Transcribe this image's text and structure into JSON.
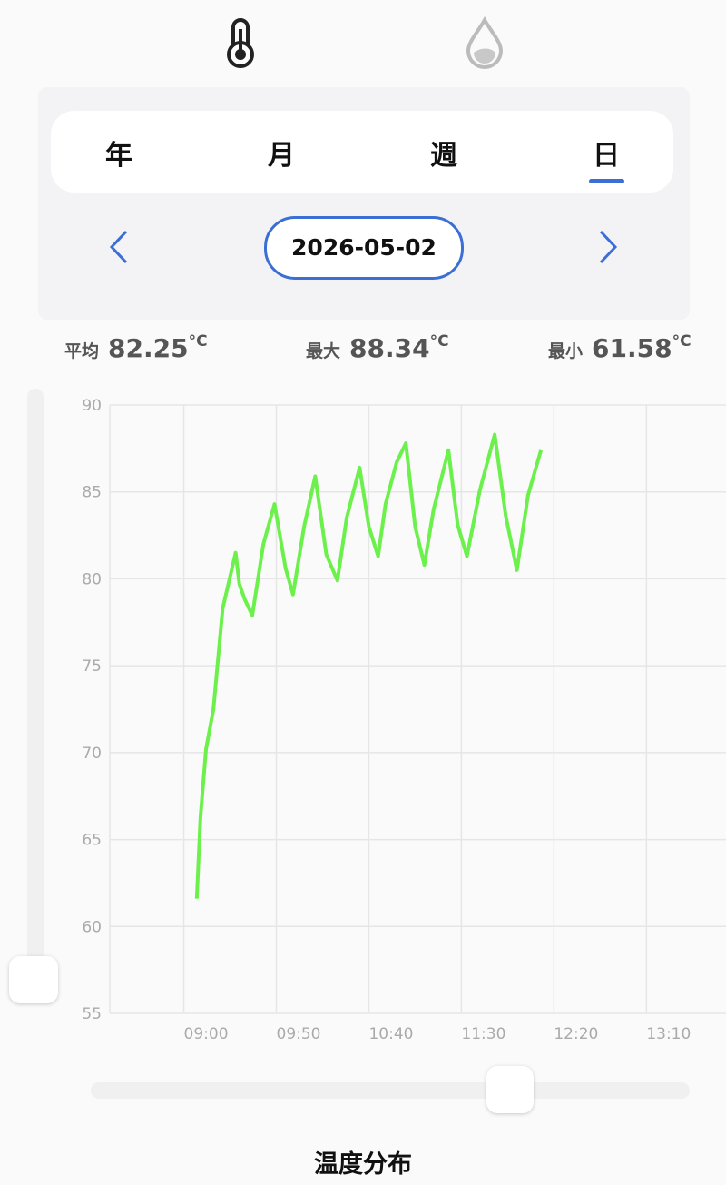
{
  "tabs": [
    "年",
    "月",
    "週",
    "日"
  ],
  "active_tab": "日",
  "date": "2026-05-02",
  "stats": [
    {
      "label": "平均",
      "value": "82.25",
      "unit": "°C"
    },
    {
      "label": "最大",
      "value": "88.34",
      "unit": "°C"
    },
    {
      "label": "最小",
      "value": "61.58",
      "unit": "°C"
    }
  ],
  "chart_data": {
    "type": "line",
    "color": "#6cf04c",
    "grid": true,
    "x": [
      547,
      549,
      552,
      556,
      561,
      568,
      570,
      573,
      577,
      583,
      589,
      595,
      599,
      605,
      611,
      617,
      623,
      628,
      635,
      640,
      645,
      649,
      655,
      660,
      665,
      670,
      675,
      683,
      688,
      693,
      700,
      708,
      714,
      720,
      726,
      733
    ],
    "values": [
      61.6,
      66.3,
      70.2,
      72.5,
      78.3,
      81.5,
      79.7,
      78.8,
      77.9,
      82.0,
      84.3,
      80.6,
      79.1,
      83.0,
      85.9,
      81.4,
      79.9,
      83.5,
      86.4,
      83.0,
      81.3,
      84.3,
      86.7,
      87.8,
      83.0,
      80.8,
      84.0,
      87.4,
      83.1,
      81.3,
      85.1,
      88.3,
      83.6,
      80.5,
      84.8,
      87.4
    ],
    "xlim": [
      500,
      833
    ],
    "xticks": [
      {
        "value": 540,
        "label": "09:00"
      },
      {
        "value": 590,
        "label": "09:50"
      },
      {
        "value": 640,
        "label": "10:40"
      },
      {
        "value": 690,
        "label": "11:30"
      },
      {
        "value": 740,
        "label": "12:20"
      },
      {
        "value": 790,
        "label": "13:10"
      }
    ],
    "ylim": [
      55,
      90
    ],
    "yticks": [
      55,
      60,
      65,
      70,
      75,
      80,
      85,
      90
    ]
  },
  "footer_title": "温度分布"
}
